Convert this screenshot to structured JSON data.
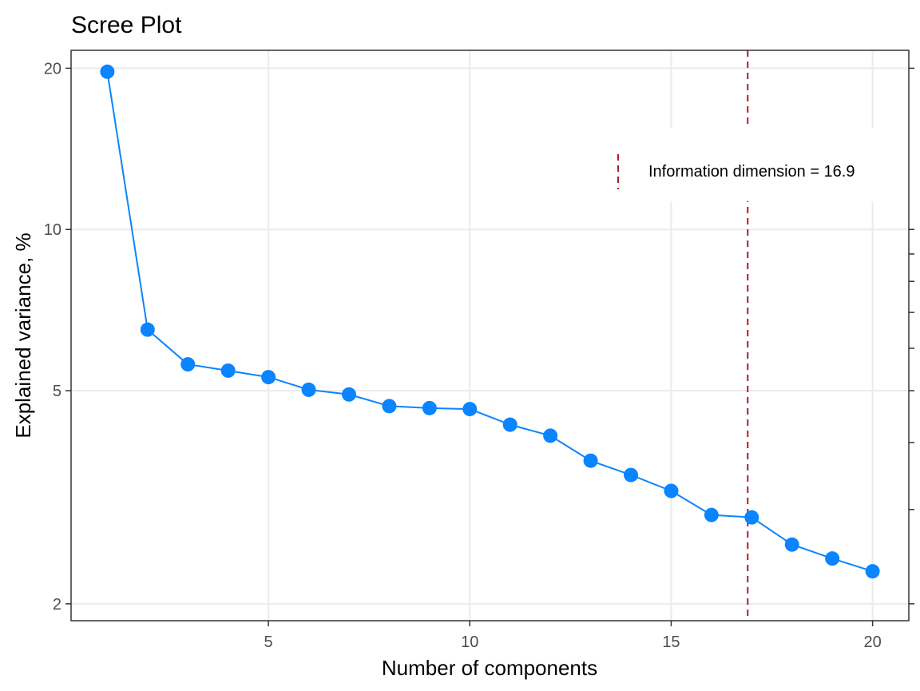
{
  "chart_data": {
    "type": "line",
    "title": "Scree Plot",
    "xlabel": "Number of components",
    "ylabel": "Explained variance, %",
    "x": [
      1,
      2,
      3,
      4,
      5,
      6,
      7,
      8,
      9,
      10,
      11,
      12,
      13,
      14,
      15,
      16,
      17,
      18,
      19,
      20
    ],
    "series": [
      {
        "values": [
          19.7,
          6.5,
          5.6,
          5.45,
          5.3,
          5.02,
          4.92,
          4.68,
          4.64,
          4.62,
          4.32,
          4.12,
          3.7,
          3.48,
          3.25,
          2.93,
          2.9,
          2.58,
          2.43,
          2.3
        ],
        "color": "#0a84ff",
        "markers": true
      }
    ],
    "xticks": [
      5,
      10,
      15,
      20
    ],
    "xtick_labels": [
      "5",
      "10",
      "15",
      "20"
    ],
    "yticks": [
      2,
      5,
      10,
      20
    ],
    "ytick_labels": [
      "2",
      "5",
      "10",
      "20"
    ],
    "y_scale": "log",
    "xlim": [
      0.1,
      20.9
    ],
    "ylim": [
      1.86,
      21.6
    ],
    "grid": true,
    "reference_line": {
      "x": 16.9,
      "color": "#b2182b",
      "style": "dashed",
      "label": "Information dimension = 16.9"
    },
    "legend_position": "top-right"
  }
}
